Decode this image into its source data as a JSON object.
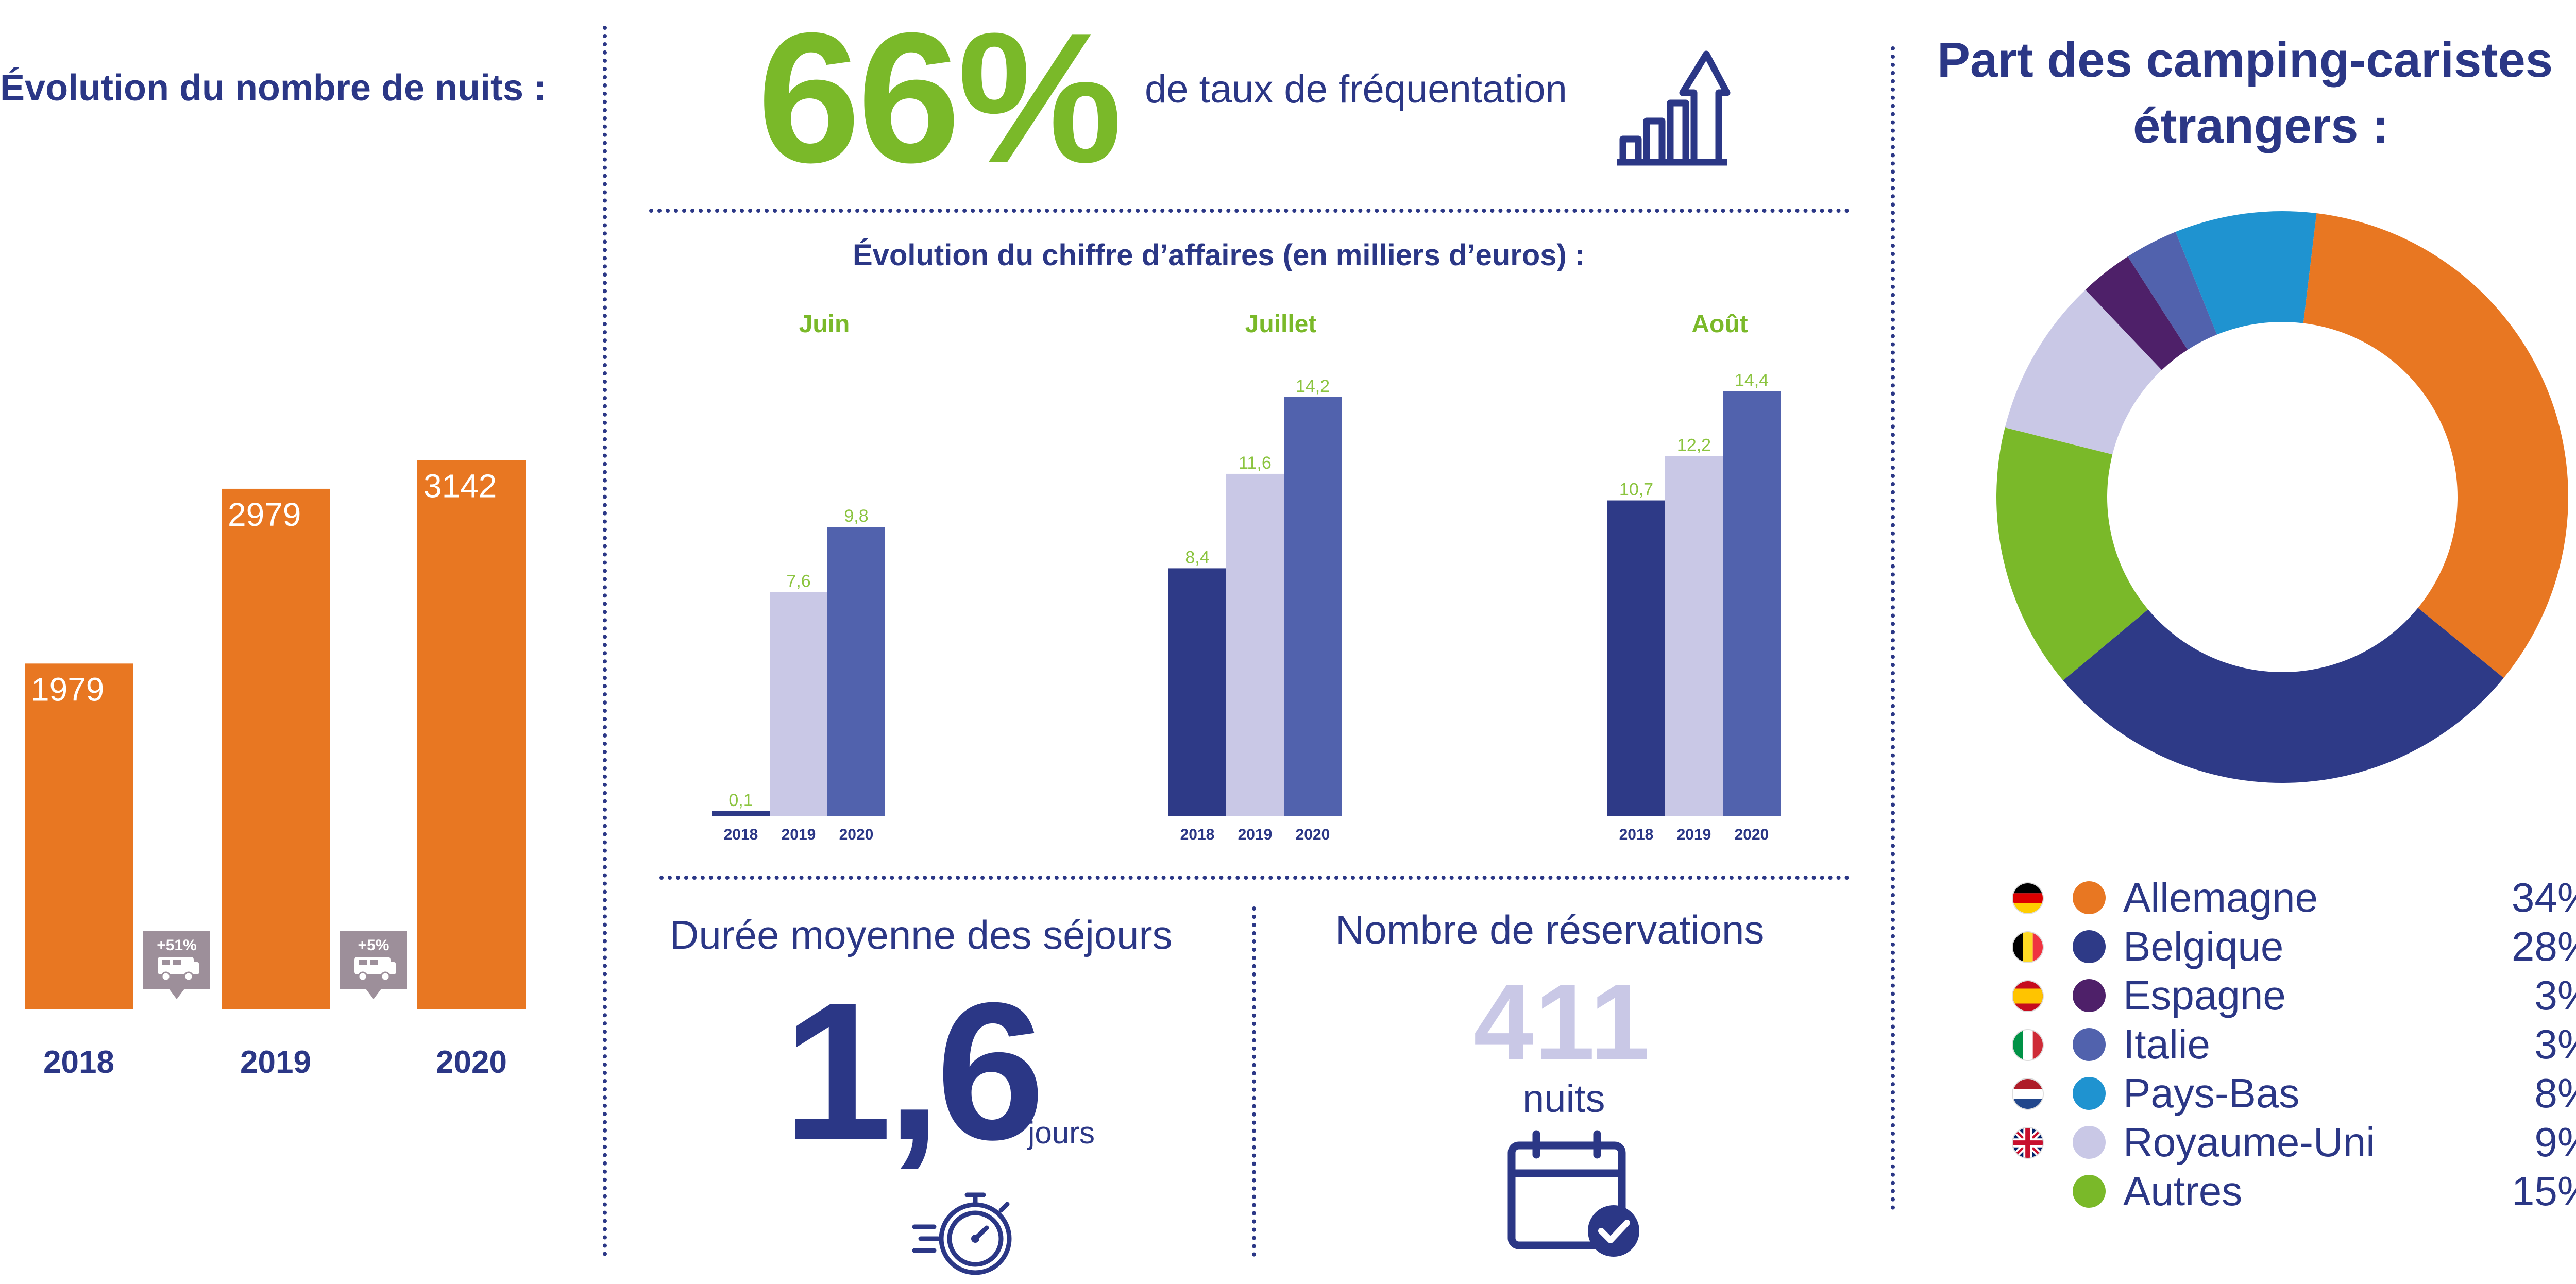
{
  "nights": {
    "title": "Évolution du nombre de nuits :",
    "badges": [
      "+51%",
      "+5%"
    ]
  },
  "occupancy": {
    "value": "66%",
    "label": "de taux de fréquentation"
  },
  "revenue": {
    "title": "Évolution du chiffre d’affaires (en milliers d’euros) :"
  },
  "stay": {
    "title": "Durée moyenne des séjours",
    "value": "1,6",
    "unit": "jours"
  },
  "bookings": {
    "title": "Nombre de réservations",
    "value": "411",
    "unit": "nuits"
  },
  "foreign": {
    "title_line1": "Part des camping-caristes",
    "title_line2": "étrangers :"
  },
  "colors": {
    "orange": "#e87722",
    "navy": "#2b3786",
    "dark_blue": "#2e3a87",
    "lavender": "#c9c8e6",
    "mid_blue": "#5162ad",
    "green": "#7ab929",
    "purple": "#4e2069",
    "light_blue": "#1f93d0",
    "badge_gray": "#9d8f9a",
    "cyan_label": "#8bc43f"
  },
  "icons": [
    "growth-chart-icon",
    "camper-van-icon",
    "stopwatch-icon",
    "calendar-check-icon"
  ],
  "chart_data": [
    {
      "type": "bar",
      "title": "Évolution du nombre de nuits :",
      "categories": [
        "2018",
        "2019",
        "2020"
      ],
      "values": [
        1979,
        2979,
        3142
      ],
      "ylim": [
        0,
        3300
      ],
      "annotations": [
        "+51%",
        "+5%"
      ],
      "grid": false
    },
    {
      "type": "bar",
      "title": "Évolution du chiffre d’affaires (en milliers d’euros) :",
      "groups": [
        "Juin",
        "Juillet",
        "Août"
      ],
      "categories": [
        "2018",
        "2019",
        "2020"
      ],
      "series": [
        {
          "group": "Juin",
          "values": [
            0.1,
            7.6,
            9.8
          ],
          "labels": [
            "0,1",
            "7,6",
            "9,8"
          ]
        },
        {
          "group": "Juillet",
          "values": [
            8.4,
            11.6,
            14.2
          ],
          "labels": [
            "8,4",
            "11,6",
            "14,2"
          ]
        },
        {
          "group": "Août",
          "values": [
            10.7,
            12.2,
            14.4
          ],
          "labels": [
            "10,7",
            "12,2",
            "14,4"
          ]
        }
      ],
      "ylim": [
        0,
        15
      ],
      "grid": false
    },
    {
      "type": "pie",
      "title": "Part des camping-caristes étrangers :",
      "donut": true,
      "slices": [
        {
          "name": "Allemagne",
          "value": 34,
          "label": "34%",
          "color": "#e87722",
          "flag": "de"
        },
        {
          "name": "Belgique",
          "value": 28,
          "label": "28%",
          "color": "#2e3a87",
          "flag": "be"
        },
        {
          "name": "Espagne",
          "value": 3,
          "label": "3%",
          "color": "#4e2069",
          "flag": "es"
        },
        {
          "name": "Italie",
          "value": 3,
          "label": "3%",
          "color": "#5162ad",
          "flag": "it"
        },
        {
          "name": "Pays-Bas",
          "value": 8,
          "label": "8%",
          "color": "#1f93d0",
          "flag": "nl"
        },
        {
          "name": "Royaume-Uni",
          "value": 9,
          "label": "9%",
          "color": "#c9c8e6",
          "flag": "gb"
        },
        {
          "name": "Autres",
          "value": 15,
          "label": "15%",
          "color": "#7ab929",
          "flag": ""
        }
      ],
      "legend": "bottom"
    }
  ]
}
